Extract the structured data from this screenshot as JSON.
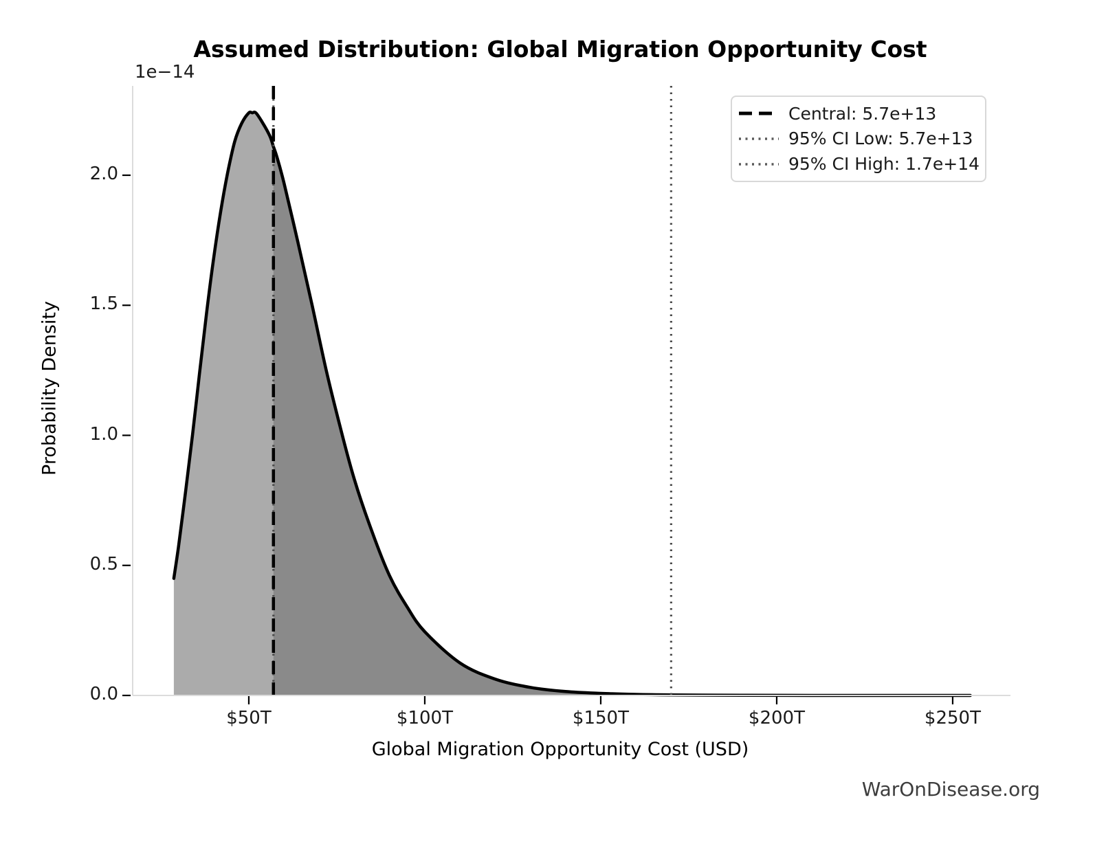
{
  "title": "Assumed Distribution: Global Migration Opportunity Cost",
  "watermark": "WarOnDisease.org",
  "legend": {
    "position": "upper right",
    "items": [
      {
        "name": "central",
        "label": "Central: 5.7e+13",
        "style": "dashed",
        "color": "#000000"
      },
      {
        "name": "ci-low",
        "label": "95% CI Low: 5.7e+13",
        "style": "dotted",
        "color": "#4a4a4a"
      },
      {
        "name": "ci-high",
        "label": "95% CI High: 1.7e+14",
        "style": "dotted",
        "color": "#4a4a4a"
      }
    ]
  },
  "chart_data": {
    "type": "area",
    "title": "Assumed Distribution: Global Migration Opportunity Cost",
    "xlabel": "Global Migration Opportunity Cost (USD)",
    "ylabel": "Probability Density",
    "y_offset_factor": "1e−14",
    "grid": false,
    "legend_position": "upper right",
    "xlim_trillions": [
      17,
      266
    ],
    "ylim_1e14": [
      0,
      2.345
    ],
    "xticks": {
      "values_trillions": [
        50,
        100,
        150,
        200,
        250
      ],
      "labels": [
        "$50T",
        "$100T",
        "$150T",
        "$200T",
        "$250T"
      ]
    },
    "yticks": {
      "values_1e14": [
        0.0,
        0.5,
        1.0,
        1.5,
        2.0
      ],
      "labels": [
        "0.0",
        "0.5",
        "1.0",
        "1.5",
        "2.0"
      ]
    },
    "curve": {
      "x_trillions": [
        28.7,
        30,
        32,
        34,
        36,
        38,
        40,
        42,
        44,
        46,
        48,
        50,
        51,
        52,
        54,
        56,
        57,
        58,
        60,
        64,
        68,
        72,
        76,
        80,
        85,
        90,
        95,
        100,
        110,
        120,
        130,
        140,
        150,
        160,
        170,
        190,
        210,
        230,
        255
      ],
      "density_1e14": [
        0.45,
        0.57,
        0.78,
        1.0,
        1.24,
        1.47,
        1.68,
        1.86,
        2.01,
        2.13,
        2.2,
        2.24,
        2.24,
        2.24,
        2.2,
        2.15,
        2.11,
        2.07,
        1.97,
        1.74,
        1.5,
        1.25,
        1.03,
        0.83,
        0.63,
        0.46,
        0.34,
        0.245,
        0.125,
        0.063,
        0.031,
        0.015,
        0.008,
        0.004,
        0.002,
        0.0005,
        0.0001,
        3e-05,
        0
      ],
      "line_color": "#000000",
      "line_width": 4.5
    },
    "fills": [
      {
        "name": "distribution-fill",
        "range_trillions": [
          28.7,
          255
        ],
        "color": "#ababab"
      },
      {
        "name": "ci-region-fill",
        "range_trillions": [
          57,
          170
        ],
        "color": "#8a8a8a"
      }
    ],
    "vlines": [
      {
        "name": "ci-low-line",
        "x_trillions": 57,
        "value": "5.7e+13",
        "style": "dotted",
        "color": "#4a4a4a"
      },
      {
        "name": "central-line",
        "x_trillions": 57,
        "value": "5.7e+13",
        "style": "dashed",
        "color": "#000000"
      },
      {
        "name": "ci-high-line",
        "x_trillions": 170,
        "value": "1.7e+14",
        "style": "dotted",
        "color": "#4a4a4a"
      }
    ]
  }
}
